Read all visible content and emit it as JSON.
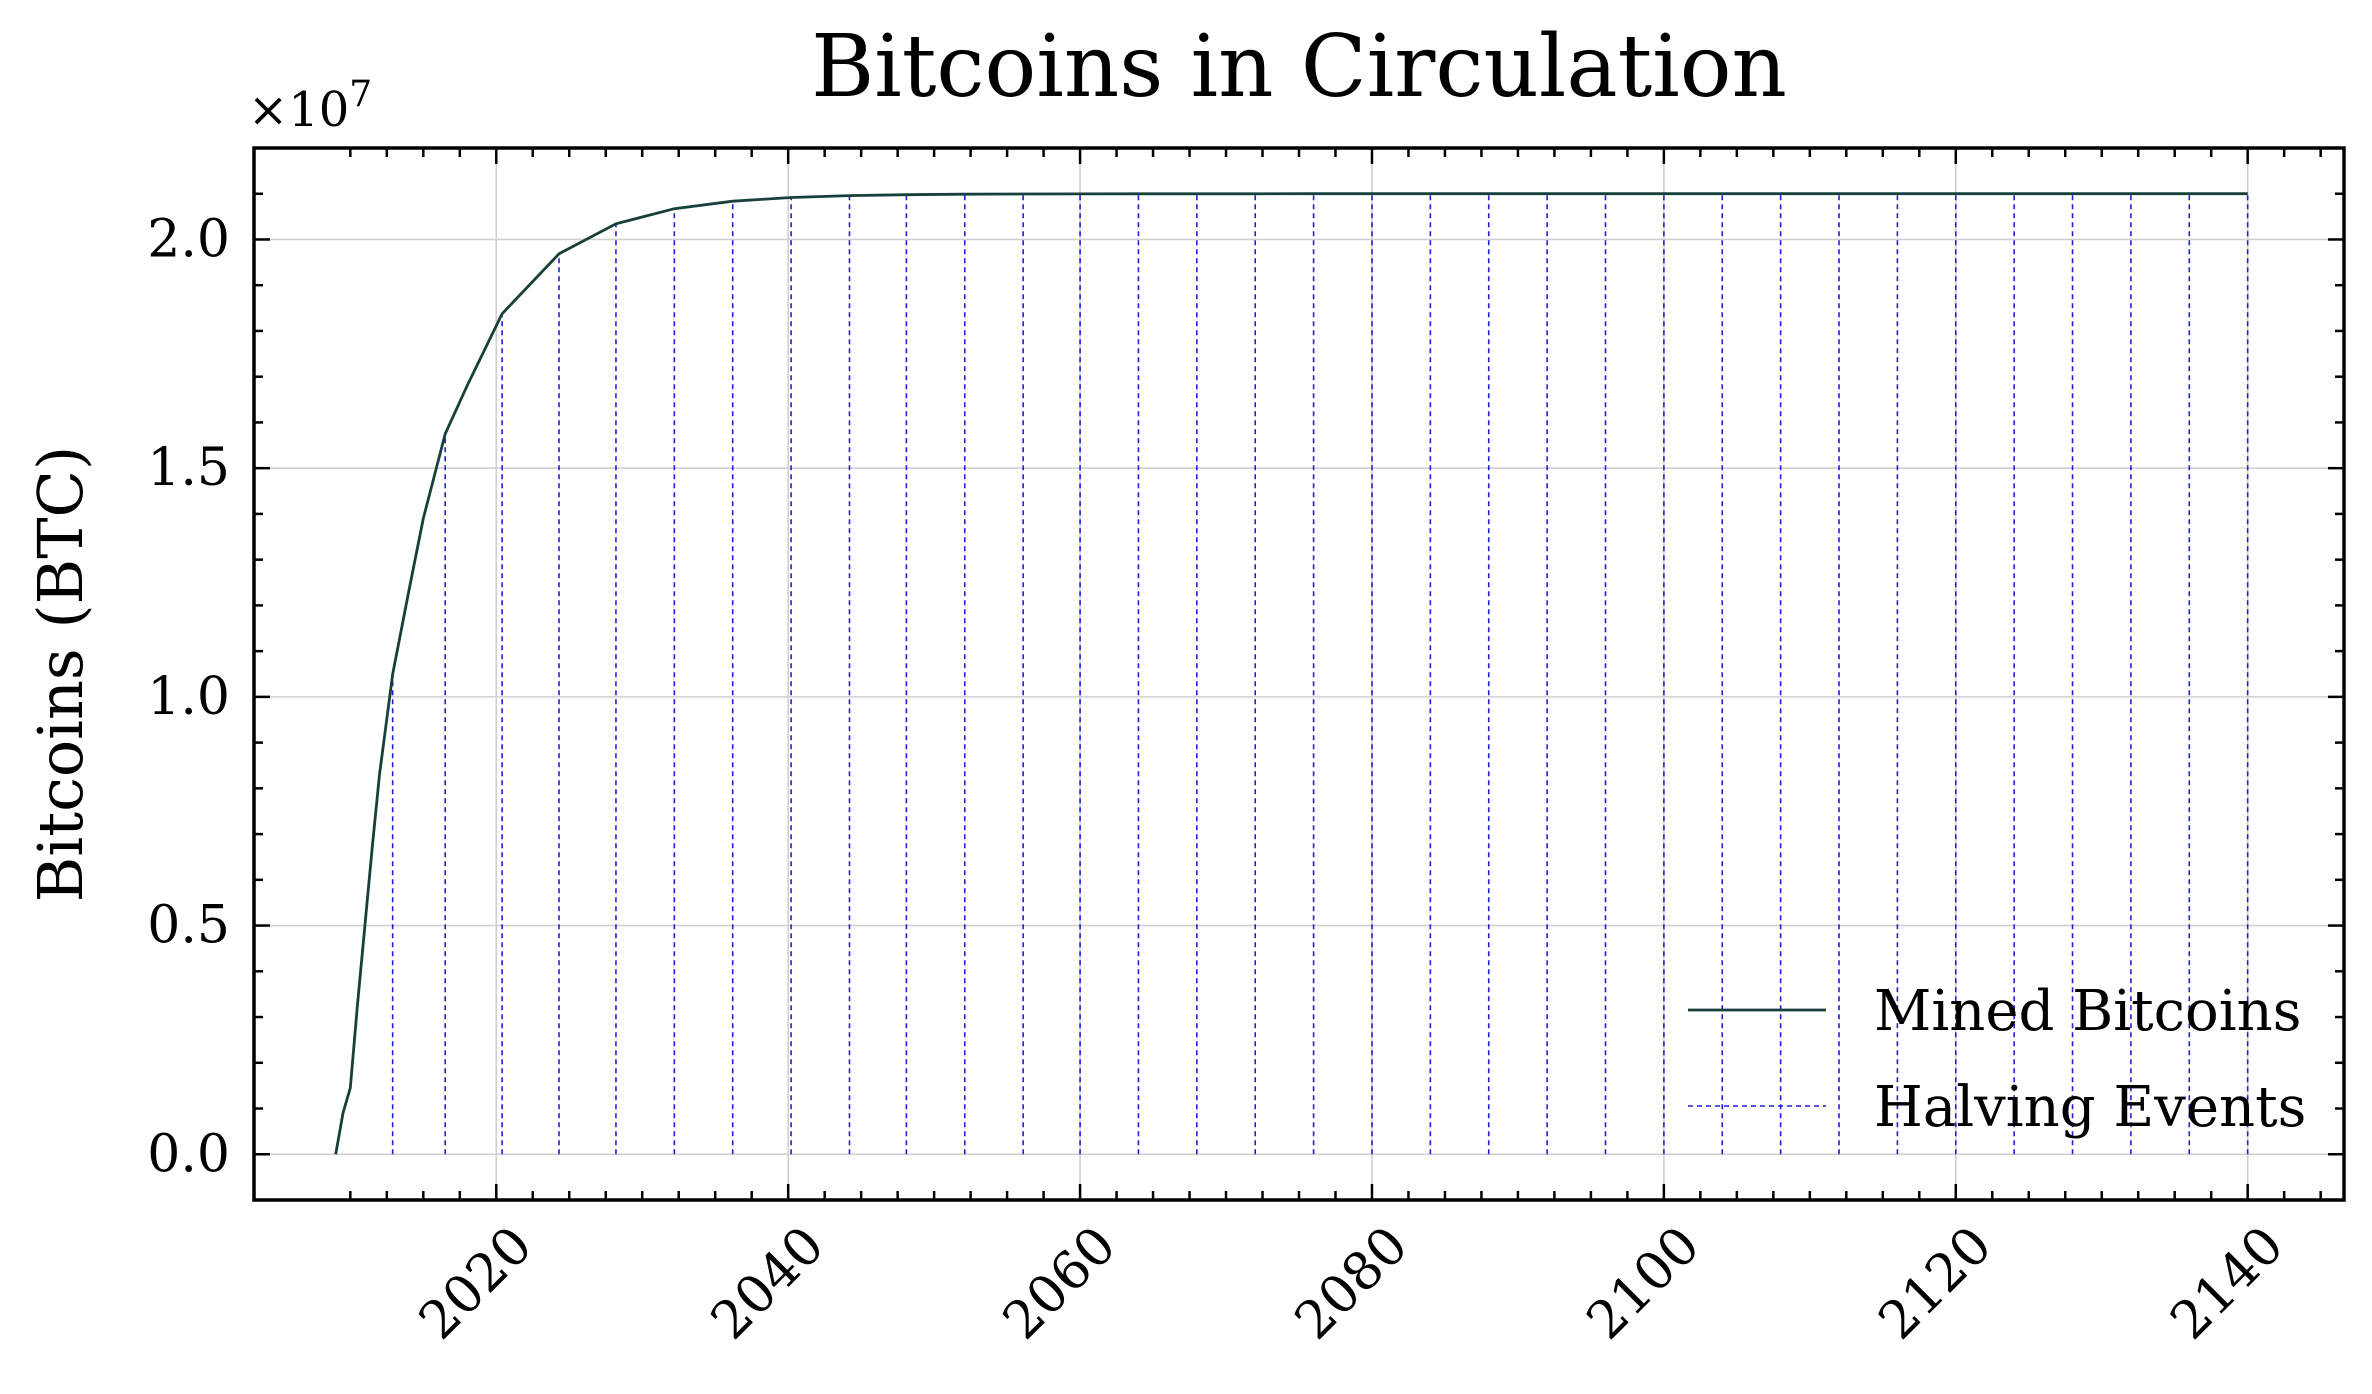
{
  "chart_data": {
    "type": "line",
    "title": "Bitcoins in Circulation",
    "xlabel": "",
    "ylabel": "Bitcoins (BTC)",
    "y_scale_label": "×10",
    "y_scale_exponent": "7",
    "xlim": [
      2003.4,
      2146.6
    ],
    "ylim": [
      -1000000,
      22000000
    ],
    "xticks": [
      2020,
      2040,
      2060,
      2080,
      2100,
      2120,
      2140
    ],
    "xtick_labels": [
      "2020",
      "2040",
      "2060",
      "2080",
      "2100",
      "2120",
      "2140"
    ],
    "yticks": [
      0,
      5000000,
      10000000,
      15000000,
      20000000
    ],
    "ytick_labels": [
      "0.0",
      "0.5",
      "1.0",
      "1.5",
      "2.0"
    ],
    "grid": true,
    "legend_position": "lower-right",
    "series": [
      {
        "name": "Mined Bitcoins",
        "color": "#18403b",
        "style": "solid",
        "x": [
          2009.0,
          2009.5,
          2010.0,
          2010.5,
          2011.0,
          2011.5,
          2012.0,
          2012.9,
          2014.0,
          2015.0,
          2016.5,
          2018.0,
          2020.4,
          2024.3,
          2028.2,
          2032.2,
          2036.2,
          2040.2,
          2044.2,
          2048.1,
          2052.1,
          2056.1,
          2060.0,
          2064.0,
          2068.0,
          2072.0,
          2076.0,
          2080.0,
          2084.0,
          2088.0,
          2092.0,
          2096.0,
          2100.0,
          2104.0,
          2108.0,
          2112.0,
          2116.0,
          2120.0,
          2124.0,
          2128.0,
          2132.0,
          2136.0,
          2140.0
        ],
        "y": [
          0,
          900000,
          1450000,
          3300000,
          5000000,
          6700000,
          8300000,
          10500000,
          12300000,
          13900000,
          15750000,
          16800000,
          18375000,
          19687500,
          20343750,
          20671875,
          20835938,
          20917969,
          20958984,
          20979492,
          20989746,
          20994873,
          20997437,
          20998718,
          20999359,
          20999680,
          20999840,
          20999920,
          20999960,
          20999980,
          20999990,
          20999995,
          20999998,
          20999999,
          21000000,
          21000000,
          21000000,
          21000000,
          21000000,
          21000000,
          21000000,
          21000000,
          21000000
        ]
      },
      {
        "name": "Halving Events",
        "color": "#1f1fd8",
        "style": "dashed",
        "x": [
          2012.9,
          2016.5,
          2020.4,
          2024.3,
          2028.2,
          2032.2,
          2036.2,
          2040.2,
          2044.2,
          2048.1,
          2052.1,
          2056.1,
          2060.0,
          2064.0,
          2068.0,
          2072.0,
          2076.0,
          2080.0,
          2084.0,
          2088.0,
          2092.0,
          2096.0,
          2100.0,
          2104.0,
          2108.0,
          2112.0,
          2116.0,
          2120.0,
          2124.0,
          2128.0,
          2132.0,
          2136.0,
          2140.0
        ]
      }
    ]
  }
}
